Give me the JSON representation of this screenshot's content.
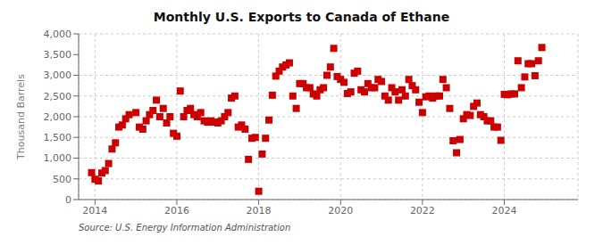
{
  "chart_data": {
    "type": "scatter",
    "title": "Monthly U.S. Exports to Canada of Ethane",
    "ylabel": "Thousand Barrels",
    "annotation": "Source: U.S. Energy Information Administration",
    "color": "#cc0000",
    "marker": "square",
    "grid": true,
    "xlim": [
      2013.6,
      2025.8
    ],
    "xticks": [
      2014,
      2016,
      2018,
      2020,
      2022,
      2024
    ],
    "ylim": [
      0,
      4000
    ],
    "yticks": [
      0,
      500,
      {
        "value": 1000,
        "label": "1,000"
      },
      {
        "value": 1500,
        "label": "1,500"
      },
      {
        "value": 2000,
        "label": "2,000"
      },
      {
        "value": 2500,
        "label": "2,500"
      },
      {
        "value": 3000,
        "label": "3,000"
      },
      {
        "value": 3500,
        "label": "3,500"
      },
      {
        "value": 4000,
        "label": "4,000"
      }
    ],
    "x": [
      2013.917,
      2014.0,
      2014.083,
      2014.167,
      2014.25,
      2014.333,
      2014.417,
      2014.5,
      2014.583,
      2014.667,
      2014.75,
      2014.833,
      2015.0,
      2015.083,
      2015.167,
      2015.25,
      2015.333,
      2015.417,
      2015.5,
      2015.583,
      2015.667,
      2015.75,
      2015.833,
      2015.917,
      2016.0,
      2016.083,
      2016.167,
      2016.25,
      2016.333,
      2016.417,
      2016.5,
      2016.583,
      2016.667,
      2016.75,
      2016.833,
      2016.917,
      2017.0,
      2017.083,
      2017.167,
      2017.25,
      2017.333,
      2017.417,
      2017.5,
      2017.583,
      2017.667,
      2017.75,
      2017.833,
      2017.917,
      2018.0,
      2018.083,
      2018.167,
      2018.25,
      2018.333,
      2018.417,
      2018.5,
      2018.583,
      2018.667,
      2018.75,
      2018.833,
      2018.917,
      2019.0,
      2019.083,
      2019.167,
      2019.25,
      2019.333,
      2019.417,
      2019.5,
      2019.583,
      2019.667,
      2019.75,
      2019.833,
      2019.917,
      2020.0,
      2020.083,
      2020.167,
      2020.25,
      2020.333,
      2020.417,
      2020.5,
      2020.583,
      2020.667,
      2020.75,
      2020.833,
      2020.917,
      2021.0,
      2021.083,
      2021.167,
      2021.25,
      2021.333,
      2021.417,
      2021.5,
      2021.583,
      2021.667,
      2021.75,
      2021.833,
      2021.917,
      2022.0,
      2022.083,
      2022.167,
      2022.25,
      2022.333,
      2022.417,
      2022.5,
      2022.583,
      2022.667,
      2022.75,
      2022.833,
      2022.917,
      2023.0,
      2023.083,
      2023.167,
      2023.25,
      2023.333,
      2023.417,
      2023.5,
      2023.583,
      2023.667,
      2023.75,
      2023.833,
      2023.917,
      2024.0,
      2024.083,
      2024.167,
      2024.25,
      2024.333,
      2024.417,
      2024.5,
      2024.583,
      2024.667,
      2024.75,
      2024.833,
      2024.917
    ],
    "values": [
      650,
      490,
      450,
      640,
      700,
      870,
      1220,
      1370,
      1750,
      1800,
      1950,
      2050,
      2100,
      1750,
      1700,
      1900,
      2050,
      2150,
      2400,
      2000,
      2200,
      1850,
      2000,
      1600,
      1530,
      2620,
      2000,
      2150,
      2200,
      2050,
      2000,
      2100,
      1900,
      1870,
      1900,
      1870,
      1850,
      1900,
      2000,
      2100,
      2450,
      2500,
      1750,
      1800,
      1700,
      970,
      1480,
      1500,
      200,
      1100,
      1480,
      1920,
      2520,
      2980,
      3100,
      3200,
      3250,
      3300,
      2500,
      2200,
      2800,
      2800,
      2700,
      2700,
      2550,
      2500,
      2650,
      2700,
      3000,
      3200,
      3650,
      2970,
      2900,
      2830,
      2560,
      2600,
      3050,
      3100,
      2650,
      2600,
      2800,
      2700,
      2700,
      2900,
      2850,
      2500,
      2400,
      2700,
      2600,
      2400,
      2650,
      2500,
      2900,
      2750,
      2650,
      2350,
      2100,
      2480,
      2500,
      2450,
      2500,
      2500,
      2900,
      2700,
      2200,
      1420,
      1130,
      1450,
      1950,
      2050,
      2030,
      2250,
      2330,
      2050,
      2000,
      1900,
      1900,
      1750,
      1750,
      1430,
      2540,
      2530,
      2550,
      2550,
      3350,
      2700,
      2960,
      3280,
      3280,
      2990,
      3350,
      3670
    ]
  }
}
